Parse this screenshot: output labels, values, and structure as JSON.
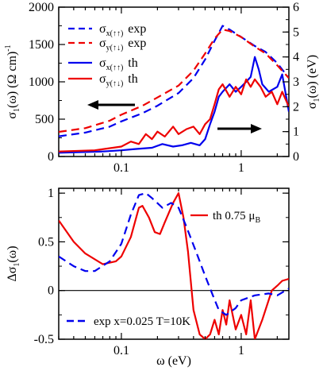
{
  "chart_data": [
    {
      "type": "line",
      "xscale": "log",
      "xlim": [
        0.03,
        2.5
      ],
      "ylim": [
        0,
        2000
      ],
      "y2lim": [
        0,
        6
      ],
      "ylabel": "σ1(ω)  (Ω cm)-1",
      "y2label": "σ1(ω)  (eV)",
      "x_ticks": [
        0.1,
        1
      ],
      "x_ticklabels": [
        "0.1",
        "1"
      ],
      "y_ticks": [
        0,
        500,
        1000,
        1500,
        2000
      ],
      "y_ticklabels": [
        "0",
        "500",
        "1000",
        "1500",
        "2000"
      ],
      "y2_ticks": [
        0,
        1,
        2,
        3,
        4,
        5,
        6
      ],
      "y2_ticklabels": [
        "0",
        "1",
        "2",
        "3",
        "4",
        "5",
        "6"
      ],
      "legend_position": "top-left",
      "annotations": [
        "left arrow: blue/red dashed curves read on left axis",
        "right arrow: blue/red solid curves read on right axis"
      ],
      "series": [
        {
          "name": "σx(↑↑) exp",
          "color": "#0000ee",
          "style": "dashed",
          "axis": "left",
          "points": [
            [
              0.03,
              270
            ],
            [
              0.05,
              320
            ],
            [
              0.08,
              400
            ],
            [
              0.1,
              470
            ],
            [
              0.15,
              580
            ],
            [
              0.2,
              680
            ],
            [
              0.3,
              850
            ],
            [
              0.4,
              1050
            ],
            [
              0.5,
              1300
            ],
            [
              0.6,
              1550
            ],
            [
              0.7,
              1750
            ],
            [
              0.8,
              1700
            ],
            [
              1.0,
              1600
            ],
            [
              1.3,
              1480
            ],
            [
              1.6,
              1400
            ],
            [
              2.0,
              1250
            ],
            [
              2.5,
              1050
            ]
          ]
        },
        {
          "name": "σy(↑↓) exp",
          "color": "#ee0000",
          "style": "dashed",
          "axis": "left",
          "points": [
            [
              0.03,
              330
            ],
            [
              0.05,
              380
            ],
            [
              0.08,
              480
            ],
            [
              0.1,
              560
            ],
            [
              0.15,
              680
            ],
            [
              0.2,
              790
            ],
            [
              0.3,
              950
            ],
            [
              0.4,
              1150
            ],
            [
              0.5,
              1380
            ],
            [
              0.6,
              1580
            ],
            [
              0.7,
              1700
            ],
            [
              0.8,
              1680
            ],
            [
              1.0,
              1600
            ],
            [
              1.3,
              1470
            ],
            [
              1.6,
              1380
            ],
            [
              2.0,
              1220
            ],
            [
              2.5,
              1050
            ]
          ]
        },
        {
          "name": "σx(↑↑) th",
          "color": "#0000ee",
          "style": "solid",
          "axis": "right",
          "points": [
            [
              0.03,
              0.15
            ],
            [
              0.07,
              0.2
            ],
            [
              0.1,
              0.25
            ],
            [
              0.13,
              0.3
            ],
            [
              0.18,
              0.35
            ],
            [
              0.22,
              0.5
            ],
            [
              0.27,
              0.4
            ],
            [
              0.32,
              0.45
            ],
            [
              0.38,
              0.55
            ],
            [
              0.45,
              0.45
            ],
            [
              0.5,
              0.7
            ],
            [
              0.55,
              1.3
            ],
            [
              0.6,
              1.8
            ],
            [
              0.65,
              2.4
            ],
            [
              0.7,
              2.6
            ],
            [
              0.8,
              2.9
            ],
            [
              0.9,
              2.6
            ],
            [
              1.0,
              2.8
            ],
            [
              1.1,
              3.0
            ],
            [
              1.2,
              3.2
            ],
            [
              1.3,
              4.0
            ],
            [
              1.4,
              3.5
            ],
            [
              1.5,
              2.9
            ],
            [
              1.7,
              2.6
            ],
            [
              2.0,
              2.8
            ],
            [
              2.2,
              3.3
            ],
            [
              2.5,
              1.8
            ]
          ]
        },
        {
          "name": "σy(↑↓) th",
          "color": "#ee0000",
          "style": "solid",
          "axis": "right",
          "points": [
            [
              0.03,
              0.2
            ],
            [
              0.06,
              0.25
            ],
            [
              0.1,
              0.4
            ],
            [
              0.12,
              0.6
            ],
            [
              0.14,
              0.5
            ],
            [
              0.16,
              0.9
            ],
            [
              0.18,
              0.7
            ],
            [
              0.2,
              1.0
            ],
            [
              0.23,
              0.8
            ],
            [
              0.27,
              1.2
            ],
            [
              0.3,
              0.9
            ],
            [
              0.35,
              1.1
            ],
            [
              0.4,
              1.2
            ],
            [
              0.45,
              0.9
            ],
            [
              0.5,
              1.3
            ],
            [
              0.55,
              1.5
            ],
            [
              0.6,
              2.1
            ],
            [
              0.65,
              2.7
            ],
            [
              0.7,
              2.9
            ],
            [
              0.8,
              2.4
            ],
            [
              0.9,
              2.8
            ],
            [
              1.0,
              2.5
            ],
            [
              1.1,
              3.1
            ],
            [
              1.2,
              2.8
            ],
            [
              1.3,
              3.1
            ],
            [
              1.45,
              2.8
            ],
            [
              1.6,
              2.4
            ],
            [
              1.8,
              2.6
            ],
            [
              2.0,
              2.1
            ],
            [
              2.2,
              2.6
            ],
            [
              2.5,
              2.0
            ]
          ]
        }
      ]
    },
    {
      "type": "line",
      "xscale": "log",
      "xlim": [
        0.03,
        2.5
      ],
      "ylim": [
        -0.5,
        1.05
      ],
      "xlabel": "ω  (eV)",
      "ylabel": "Δσ1(ω)",
      "x_ticks": [
        0.1,
        1
      ],
      "x_ticklabels": [
        "0.1",
        "1"
      ],
      "y_ticks": [
        -0.5,
        0,
        0.5,
        1
      ],
      "y_ticklabels": [
        "-0.5",
        "0",
        "0.5",
        "1"
      ],
      "zero_line": true,
      "series": [
        {
          "name": "th 0.75 μB",
          "color": "#ee0000",
          "style": "solid",
          "points": [
            [
              0.03,
              0.72
            ],
            [
              0.04,
              0.5
            ],
            [
              0.05,
              0.38
            ],
            [
              0.07,
              0.27
            ],
            [
              0.09,
              0.3
            ],
            [
              0.1,
              0.35
            ],
            [
              0.12,
              0.55
            ],
            [
              0.14,
              0.85
            ],
            [
              0.15,
              0.87
            ],
            [
              0.17,
              0.75
            ],
            [
              0.19,
              0.6
            ],
            [
              0.21,
              0.58
            ],
            [
              0.23,
              0.7
            ],
            [
              0.27,
              0.9
            ],
            [
              0.3,
              1.0
            ],
            [
              0.33,
              0.75
            ],
            [
              0.36,
              0.4
            ],
            [
              0.4,
              -0.2
            ],
            [
              0.45,
              -0.45
            ],
            [
              0.5,
              -0.5
            ],
            [
              0.55,
              -0.45
            ],
            [
              0.6,
              -0.3
            ],
            [
              0.65,
              -0.45
            ],
            [
              0.7,
              -0.2
            ],
            [
              0.75,
              -0.35
            ],
            [
              0.8,
              -0.1
            ],
            [
              0.9,
              -0.4
            ],
            [
              1.0,
              -0.25
            ],
            [
              1.1,
              -0.45
            ],
            [
              1.2,
              -0.1
            ],
            [
              1.3,
              -0.5
            ],
            [
              1.5,
              -0.3
            ],
            [
              1.8,
              0.0
            ],
            [
              2.0,
              0.05
            ],
            [
              2.2,
              0.1
            ],
            [
              2.5,
              0.12
            ]
          ]
        },
        {
          "name": "exp x=0.025 T=10K",
          "color": "#0000ee",
          "style": "dashed",
          "points": [
            [
              0.03,
              0.35
            ],
            [
              0.04,
              0.25
            ],
            [
              0.05,
              0.2
            ],
            [
              0.06,
              0.2
            ],
            [
              0.08,
              0.3
            ],
            [
              0.1,
              0.48
            ],
            [
              0.12,
              0.78
            ],
            [
              0.14,
              0.98
            ],
            [
              0.16,
              1.0
            ],
            [
              0.18,
              0.95
            ],
            [
              0.22,
              0.85
            ],
            [
              0.26,
              0.9
            ],
            [
              0.3,
              0.85
            ],
            [
              0.35,
              0.65
            ],
            [
              0.42,
              0.4
            ],
            [
              0.5,
              0.15
            ],
            [
              0.58,
              -0.05
            ],
            [
              0.65,
              -0.2
            ],
            [
              0.75,
              -0.25
            ],
            [
              0.9,
              -0.18
            ],
            [
              1.0,
              -0.1
            ],
            [
              1.3,
              -0.05
            ],
            [
              1.7,
              -0.03
            ],
            [
              2.0,
              -0.05
            ],
            [
              2.5,
              0.02
            ]
          ]
        }
      ]
    }
  ],
  "legend_top": [
    {
      "symbol": "σ",
      "sub": "x(↑↑)",
      "text": "exp"
    },
    {
      "symbol": "σ",
      "sub": "y(↑↓)",
      "text": "exp"
    },
    {
      "symbol": "σ",
      "sub": "x(↑↑)",
      "text": "th"
    },
    {
      "symbol": "σ",
      "sub": "y(↑↓)",
      "text": "th"
    }
  ],
  "legend_bottom": [
    {
      "text": "th  0.75 μ",
      "sub": "B"
    },
    {
      "text": "exp   x=0.025   T=10K",
      "sub": ""
    }
  ],
  "labels": {
    "top_ylabel_main": "σ",
    "top_ylabel_sub": "1",
    "top_ylabel_rest": "(ω)   (Ω cm)",
    "top_ylabel_sup": "-1",
    "top_y2label_main": "σ",
    "top_y2label_sub": "1",
    "top_y2label_rest": "(ω)   (eV)",
    "bottom_ylabel_main": "Δσ",
    "bottom_ylabel_sub": "1",
    "bottom_ylabel_rest": "(ω)",
    "xlabel": "ω  (eV)"
  }
}
